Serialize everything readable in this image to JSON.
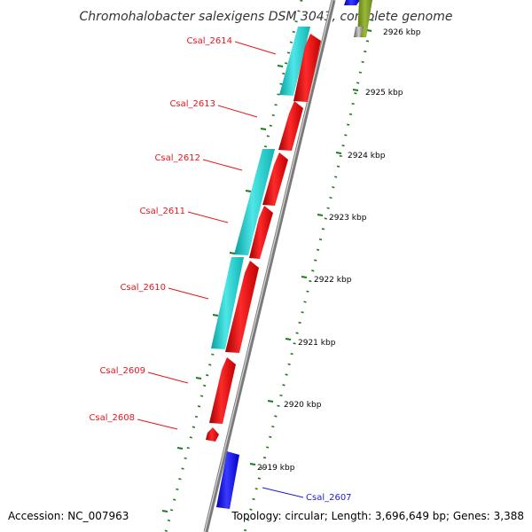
{
  "title": "Chromohalobacter salexigens DSM 3043, complete genome",
  "accession": "Accession: NC_007963",
  "topology": "Topology: circular; Length: 3,696,649 bp; Genes: 3,388",
  "ticks": [
    "2926 kbp",
    "2925 kbp",
    "2924 kbp",
    "2923 kbp",
    "2922 kbp",
    "2921 kbp",
    "2920 kbp",
    "2919 kbp"
  ],
  "gene_labels": [
    {
      "text": "Csal_2614",
      "color": "#e8141c"
    },
    {
      "text": "Csal_2613",
      "color": "#e8141c"
    },
    {
      "text": "Csal_2612",
      "color": "#e8141c"
    },
    {
      "text": "Csal_2611",
      "color": "#e8141c"
    },
    {
      "text": "Csal_2610",
      "color": "#e8141c"
    },
    {
      "text": "Csal_2609",
      "color": "#e8141c"
    },
    {
      "text": "Csal_2608",
      "color": "#e8141c"
    },
    {
      "text": "Csal_2607",
      "color": "#1a1ad6"
    }
  ],
  "colors": {
    "reverse_gene": "#f00a0a",
    "forward_gene": "#1010f0",
    "feature": "#20c8c8",
    "other_feature": "#7a9a28",
    "backbone": "#8c8c8c",
    "ticks": "#1e7a1e"
  }
}
